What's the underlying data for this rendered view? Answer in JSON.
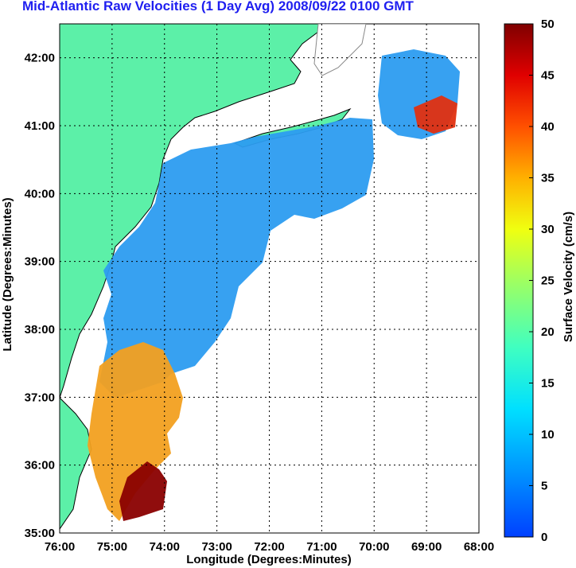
{
  "title": "Mid-Atlantic Raw Velocities (1 Day Avg) 2008/09/22 0100 GMT",
  "map": {
    "xlabel": "Longitude (Degrees:Minutes)",
    "ylabel": "Latitude (Degrees:Minutes)",
    "x_ticks": [
      "76:00",
      "75:00",
      "74:00",
      "73:00",
      "72:00",
      "71:00",
      "70:00",
      "69:00",
      "68:00"
    ],
    "y_ticks": [
      "42:00",
      "41:00",
      "40:00",
      "39:00",
      "38:00",
      "37:00",
      "36:00",
      "35:00"
    ],
    "lon_range": [
      -76,
      -68
    ],
    "lat_range": [
      35,
      42.5
    ],
    "grid": true,
    "land_color": "#5cf0a8",
    "isobath_color": "#a0a0a0"
  },
  "colorbar": {
    "label": "Surface Velocity (cm/s)",
    "ticks": [
      "50",
      "45",
      "40",
      "35",
      "30",
      "25",
      "20",
      "15",
      "10",
      "5",
      "0"
    ],
    "range": [
      0,
      50
    ],
    "colormap": [
      "#7f0000",
      "#b40000",
      "#e60000",
      "#ff3000",
      "#ff6a00",
      "#ffa000",
      "#ffd200",
      "#f2ff0d",
      "#b8ff47",
      "#7eff81",
      "#44ffbb",
      "#10f8ef",
      "#00c8ff",
      "#0094ff",
      "#0060ff",
      "#0030ff"
    ]
  }
}
